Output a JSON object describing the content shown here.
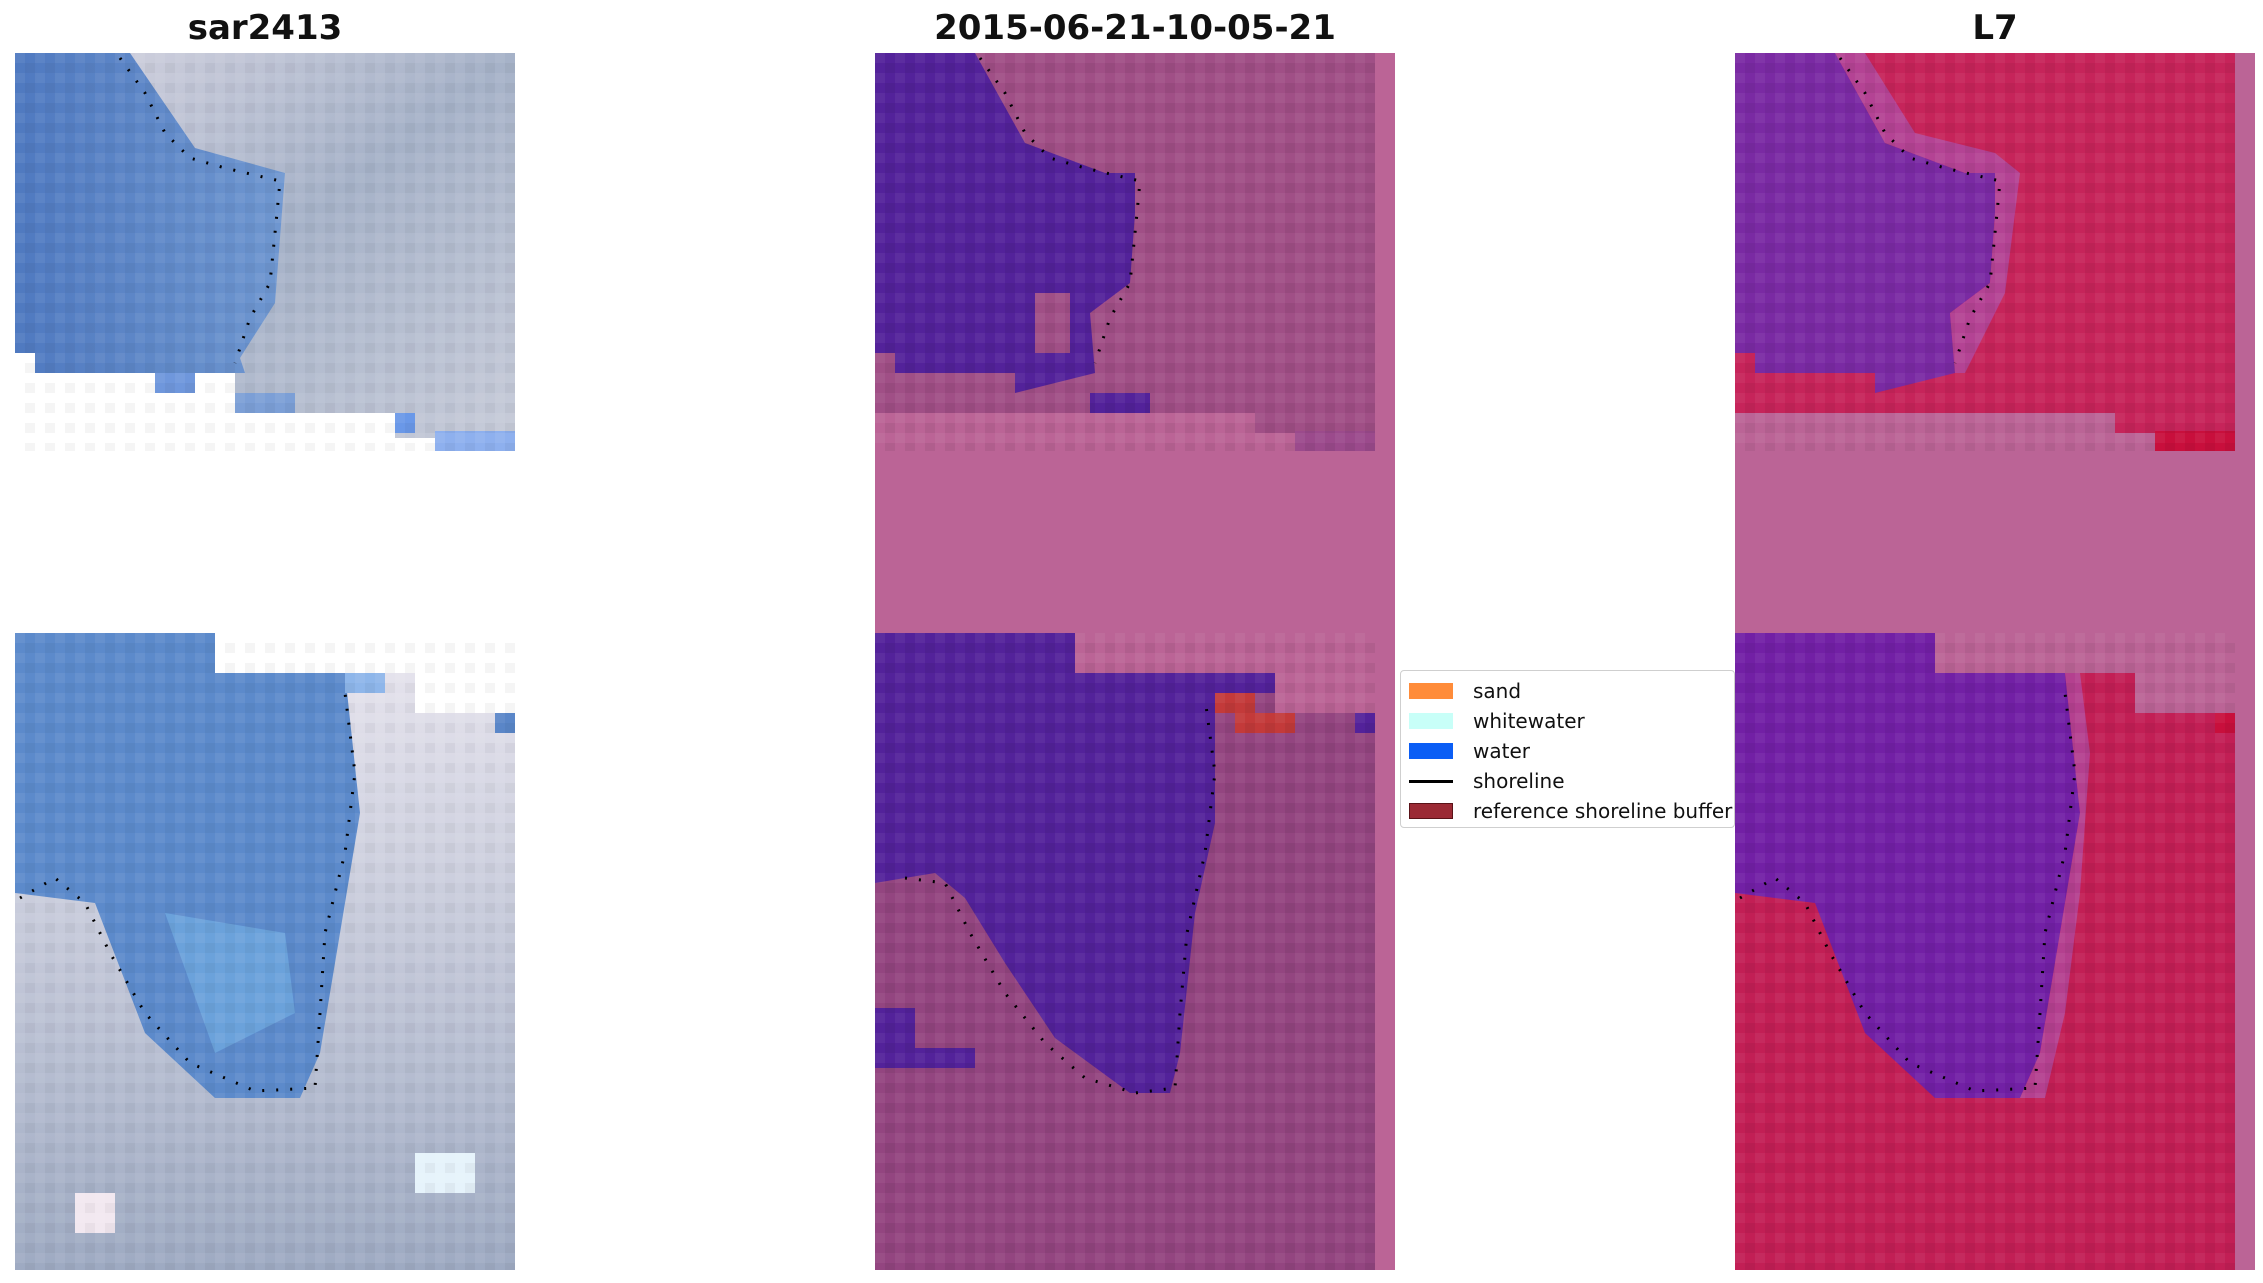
{
  "titles": {
    "left": "sar2413",
    "middle": "2015-06-21-10-05-21",
    "right": "L7"
  },
  "legend": {
    "items": [
      {
        "label": "sand",
        "color": "#ff8c3a",
        "kind": "patch"
      },
      {
        "label": "whitewater",
        "color": "#c8fff8",
        "kind": "patch"
      },
      {
        "label": "water",
        "color": "#0b5ef5",
        "kind": "patch"
      },
      {
        "label": "shoreline",
        "color": "#000000",
        "kind": "line"
      },
      {
        "label": "reference shoreline buffer",
        "color": "#9b2a35",
        "kind": "patch"
      }
    ]
  },
  "colors": {
    "rgb_water": "#5a86c8",
    "rgb_land": "#b7bed0",
    "class_water": "#53229a",
    "class_land": "#ad5a92",
    "nodata": "#bb6496",
    "ndwi_water": "#7a2aa3",
    "ndwi_land": "#c6245a",
    "buffer": "#c33a3a"
  }
}
